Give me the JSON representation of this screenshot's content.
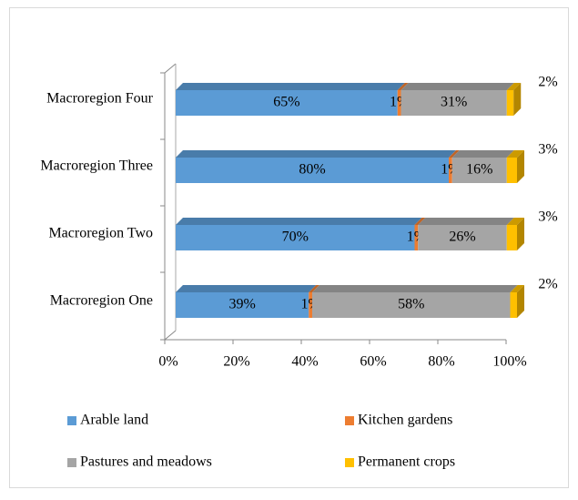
{
  "chart_data": {
    "type": "bar3d_stacked_horizontal",
    "categories": [
      "Macroregion One",
      "Macroregion Two",
      "Macroregion Three",
      "Macroregion Four"
    ],
    "series": [
      {
        "name": "Arable land",
        "color": "#5b9bd5",
        "values": [
          39,
          70,
          80,
          65
        ],
        "value_labels": [
          "39%",
          "70%",
          "80%",
          "65%"
        ]
      },
      {
        "name": "Kitchen gardens",
        "color": "#ed7d31",
        "values": [
          1,
          1,
          1,
          1
        ],
        "value_labels": [
          "1%",
          "1%",
          "1%",
          "1%"
        ]
      },
      {
        "name": "Pastures and meadows",
        "color": "#a5a5a5",
        "values": [
          58,
          26,
          16,
          31
        ],
        "value_labels": [
          "58%",
          "26%",
          "16%",
          "31%"
        ]
      },
      {
        "name": "Permanent crops",
        "color": "#ffc000",
        "values": [
          2,
          3,
          3,
          2
        ],
        "value_labels": [
          "2%",
          "3%",
          "3%",
          "2%"
        ]
      }
    ],
    "xlim": [
      0,
      100
    ],
    "xticks": [
      {
        "value": 0,
        "label": "0%"
      },
      {
        "value": 20,
        "label": "20%"
      },
      {
        "value": 40,
        "label": "40%"
      },
      {
        "value": 60,
        "label": "60%"
      },
      {
        "value": 80,
        "label": "80%"
      },
      {
        "value": 100,
        "label": "100%"
      }
    ],
    "legend": "bottom"
  }
}
